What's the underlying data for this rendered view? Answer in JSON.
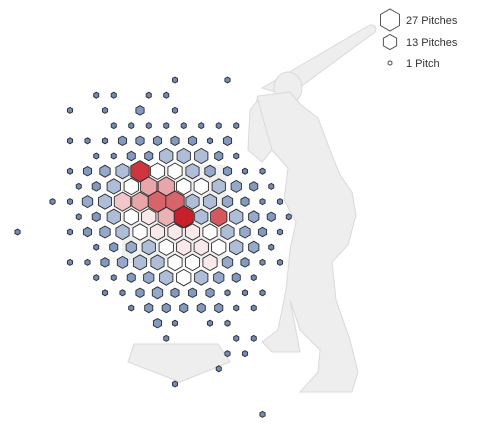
{
  "chart_data": {
    "type": "heatmap",
    "title": "",
    "xlabel": "",
    "ylabel": "",
    "legend": {
      "placement": "top-right",
      "entries": [
        {
          "label": "27 Pitches",
          "count": 27
        },
        {
          "label": "13 Pitches",
          "count": 13
        },
        {
          "label": "1 Pitch",
          "count": 1
        }
      ]
    },
    "color_scale": {
      "low": "#4d6fa8",
      "neutral": "#ffffff",
      "high": "#c8202a",
      "stroke": "#2b2b2b"
    },
    "silhouette_color": "#eeeeee",
    "cells": [
      {
        "col": 0,
        "row": 0,
        "count": 2,
        "value": -0.8
      },
      {
        "col": 3,
        "row": 0,
        "count": 2,
        "value": -0.8
      },
      {
        "col": -5,
        "row": 1,
        "count": 2,
        "value": -0.8
      },
      {
        "col": -4,
        "row": 1,
        "count": 2,
        "value": -0.8
      },
      {
        "col": -2,
        "row": 1,
        "count": 2,
        "value": -0.8
      },
      {
        "col": -1,
        "row": 1,
        "count": 2,
        "value": -0.8
      },
      {
        "col": -6,
        "row": 2,
        "count": 2,
        "value": -0.8
      },
      {
        "col": -4,
        "row": 2,
        "count": 2,
        "value": -0.8
      },
      {
        "col": -2,
        "row": 2,
        "count": 5,
        "value": -0.7
      },
      {
        "col": 0,
        "row": 2,
        "count": 2,
        "value": -0.8
      },
      {
        "col": -4,
        "row": 3,
        "count": 2,
        "value": -0.8
      },
      {
        "col": -3,
        "row": 3,
        "count": 2,
        "value": -0.8
      },
      {
        "col": -2,
        "row": 3,
        "count": 2,
        "value": -0.8
      },
      {
        "col": -1,
        "row": 3,
        "count": 2,
        "value": -0.8
      },
      {
        "col": 0,
        "row": 3,
        "count": 2,
        "value": -0.8
      },
      {
        "col": 1,
        "row": 3,
        "count": 2,
        "value": -0.8
      },
      {
        "col": 2,
        "row": 3,
        "count": 2,
        "value": -0.8
      },
      {
        "col": 3,
        "row": 3,
        "count": 2,
        "value": -0.8
      },
      {
        "col": -6,
        "row": 4,
        "count": 2,
        "value": -0.8
      },
      {
        "col": -5,
        "row": 4,
        "count": 2,
        "value": -0.8
      },
      {
        "col": -4,
        "row": 4,
        "count": 2,
        "value": -0.8
      },
      {
        "col": -3,
        "row": 4,
        "count": 5,
        "value": -0.7
      },
      {
        "col": -2,
        "row": 4,
        "count": 5,
        "value": -0.7
      },
      {
        "col": -1,
        "row": 4,
        "count": 5,
        "value": -0.7
      },
      {
        "col": 0,
        "row": 4,
        "count": 5,
        "value": -0.7
      },
      {
        "col": 1,
        "row": 4,
        "count": 5,
        "value": -0.7
      },
      {
        "col": 2,
        "row": 4,
        "count": 2,
        "value": -0.8
      },
      {
        "col": 3,
        "row": 4,
        "count": 5,
        "value": -0.7
      },
      {
        "col": -5,
        "row": 5,
        "count": 2,
        "value": -0.8
      },
      {
        "col": -4,
        "row": 5,
        "count": 2,
        "value": -0.8
      },
      {
        "col": -3,
        "row": 5,
        "count": 5,
        "value": -0.7
      },
      {
        "col": -2,
        "row": 5,
        "count": 5,
        "value": -0.7
      },
      {
        "col": -1,
        "row": 5,
        "count": 13,
        "value": -0.45
      },
      {
        "col": 0,
        "row": 5,
        "count": 13,
        "value": -0.45
      },
      {
        "col": 1,
        "row": 5,
        "count": 13,
        "value": -0.45
      },
      {
        "col": 2,
        "row": 5,
        "count": 5,
        "value": -0.7
      },
      {
        "col": 3,
        "row": 5,
        "count": 2,
        "value": -0.8
      },
      {
        "col": -6,
        "row": 6,
        "count": 2,
        "value": -0.8
      },
      {
        "col": -5,
        "row": 6,
        "count": 5,
        "value": -0.7
      },
      {
        "col": -4,
        "row": 6,
        "count": 8,
        "value": -0.6
      },
      {
        "col": -3,
        "row": 6,
        "count": 13,
        "value": -0.45
      },
      {
        "col": -2,
        "row": 6,
        "count": 25,
        "value": 0.9
      },
      {
        "col": -1,
        "row": 6,
        "count": 15,
        "value": 0.0
      },
      {
        "col": 0,
        "row": 6,
        "count": 15,
        "value": 0.0
      },
      {
        "col": 1,
        "row": 6,
        "count": 13,
        "value": -0.45
      },
      {
        "col": 2,
        "row": 6,
        "count": 8,
        "value": -0.6
      },
      {
        "col": 3,
        "row": 6,
        "count": 5,
        "value": -0.7
      },
      {
        "col": 4,
        "row": 6,
        "count": 2,
        "value": -0.8
      },
      {
        "col": 5,
        "row": 6,
        "count": 2,
        "value": -0.8
      },
      {
        "col": -6,
        "row": 7,
        "count": 2,
        "value": -0.8
      },
      {
        "col": -5,
        "row": 7,
        "count": 5,
        "value": -0.7
      },
      {
        "col": -4,
        "row": 7,
        "count": 13,
        "value": -0.45
      },
      {
        "col": -3,
        "row": 7,
        "count": 15,
        "value": 0.0
      },
      {
        "col": -2,
        "row": 7,
        "count": 20,
        "value": 0.4
      },
      {
        "col": -1,
        "row": 7,
        "count": 20,
        "value": 0.4
      },
      {
        "col": 0,
        "row": 7,
        "count": 15,
        "value": 0.0
      },
      {
        "col": 1,
        "row": 7,
        "count": 15,
        "value": 0.0
      },
      {
        "col": 2,
        "row": 7,
        "count": 13,
        "value": -0.45
      },
      {
        "col": 3,
        "row": 7,
        "count": 8,
        "value": -0.6
      },
      {
        "col": 4,
        "row": 7,
        "count": 5,
        "value": -0.7
      },
      {
        "col": 5,
        "row": 7,
        "count": 2,
        "value": -0.8
      },
      {
        "col": -7,
        "row": 8,
        "count": 2,
        "value": -0.8
      },
      {
        "col": -6,
        "row": 8,
        "count": 2,
        "value": -0.8
      },
      {
        "col": -5,
        "row": 8,
        "count": 8,
        "value": -0.6
      },
      {
        "col": -4,
        "row": 8,
        "count": 13,
        "value": -0.45
      },
      {
        "col": -3,
        "row": 8,
        "count": 20,
        "value": 0.25
      },
      {
        "col": -2,
        "row": 8,
        "count": 20,
        "value": 0.4
      },
      {
        "col": -1,
        "row": 8,
        "count": 25,
        "value": 0.7
      },
      {
        "col": 0,
        "row": 8,
        "count": 25,
        "value": 0.7
      },
      {
        "col": 1,
        "row": 8,
        "count": 13,
        "value": -0.45
      },
      {
        "col": 2,
        "row": 8,
        "count": 13,
        "value": -0.45
      },
      {
        "col": 3,
        "row": 8,
        "count": 8,
        "value": -0.6
      },
      {
        "col": 4,
        "row": 8,
        "count": 5,
        "value": -0.7
      },
      {
        "col": 5,
        "row": 8,
        "count": 2,
        "value": -0.8
      },
      {
        "col": 6,
        "row": 8,
        "count": 2,
        "value": -0.8
      },
      {
        "col": -6,
        "row": 9,
        "count": 2,
        "value": -0.8
      },
      {
        "col": -5,
        "row": 9,
        "count": 5,
        "value": -0.7
      },
      {
        "col": -4,
        "row": 9,
        "count": 13,
        "value": -0.45
      },
      {
        "col": -3,
        "row": 9,
        "count": 15,
        "value": 0.0
      },
      {
        "col": -2,
        "row": 9,
        "count": 15,
        "value": 0.1
      },
      {
        "col": -1,
        "row": 9,
        "count": 20,
        "value": 0.35
      },
      {
        "col": 0,
        "row": 9,
        "count": 27,
        "value": 1.0
      },
      {
        "col": 1,
        "row": 9,
        "count": 13,
        "value": -0.45
      },
      {
        "col": 2,
        "row": 9,
        "count": 20,
        "value": 0.75
      },
      {
        "col": 3,
        "row": 9,
        "count": 13,
        "value": -0.45
      },
      {
        "col": 4,
        "row": 9,
        "count": 8,
        "value": -0.6
      },
      {
        "col": 5,
        "row": 9,
        "count": 5,
        "value": -0.7
      },
      {
        "col": 6,
        "row": 9,
        "count": 2,
        "value": -0.8
      },
      {
        "col": -9,
        "row": 10,
        "count": 2,
        "value": -0.8
      },
      {
        "col": -6,
        "row": 10,
        "count": 2,
        "value": -0.8
      },
      {
        "col": -5,
        "row": 10,
        "count": 5,
        "value": -0.7
      },
      {
        "col": -4,
        "row": 10,
        "count": 8,
        "value": -0.6
      },
      {
        "col": -3,
        "row": 10,
        "count": 13,
        "value": -0.45
      },
      {
        "col": -2,
        "row": 10,
        "count": 15,
        "value": 0.0
      },
      {
        "col": -1,
        "row": 10,
        "count": 15,
        "value": 0.1
      },
      {
        "col": 0,
        "row": 10,
        "count": 15,
        "value": 0.1
      },
      {
        "col": 1,
        "row": 10,
        "count": 15,
        "value": 0.1
      },
      {
        "col": 2,
        "row": 10,
        "count": 15,
        "value": 0.0
      },
      {
        "col": 3,
        "row": 10,
        "count": 13,
        "value": -0.45
      },
      {
        "col": 4,
        "row": 10,
        "count": 8,
        "value": -0.6
      },
      {
        "col": 5,
        "row": 10,
        "count": 5,
        "value": -0.7
      },
      {
        "col": 6,
        "row": 10,
        "count": 2,
        "value": -0.8
      },
      {
        "col": -5,
        "row": 11,
        "count": 2,
        "value": -0.8
      },
      {
        "col": -4,
        "row": 11,
        "count": 5,
        "value": -0.7
      },
      {
        "col": -3,
        "row": 11,
        "count": 8,
        "value": -0.6
      },
      {
        "col": -2,
        "row": 11,
        "count": 13,
        "value": -0.45
      },
      {
        "col": -1,
        "row": 11,
        "count": 15,
        "value": 0.0
      },
      {
        "col": 0,
        "row": 11,
        "count": 15,
        "value": 0.1
      },
      {
        "col": 1,
        "row": 11,
        "count": 15,
        "value": 0.1
      },
      {
        "col": 2,
        "row": 11,
        "count": 15,
        "value": 0.0
      },
      {
        "col": 3,
        "row": 11,
        "count": 13,
        "value": -0.45
      },
      {
        "col": 4,
        "row": 11,
        "count": 8,
        "value": -0.6
      },
      {
        "col": 5,
        "row": 11,
        "count": 2,
        "value": -0.8
      },
      {
        "col": -6,
        "row": 12,
        "count": 2,
        "value": -0.8
      },
      {
        "col": -5,
        "row": 12,
        "count": 2,
        "value": -0.8
      },
      {
        "col": -4,
        "row": 12,
        "count": 5,
        "value": -0.7
      },
      {
        "col": -3,
        "row": 12,
        "count": 8,
        "value": -0.6
      },
      {
        "col": -2,
        "row": 12,
        "count": 13,
        "value": -0.45
      },
      {
        "col": -1,
        "row": 12,
        "count": 13,
        "value": -0.45
      },
      {
        "col": 0,
        "row": 12,
        "count": 15,
        "value": 0.0
      },
      {
        "col": 1,
        "row": 12,
        "count": 15,
        "value": 0.0
      },
      {
        "col": 2,
        "row": 12,
        "count": 15,
        "value": 0.1
      },
      {
        "col": 3,
        "row": 12,
        "count": 8,
        "value": -0.6
      },
      {
        "col": 4,
        "row": 12,
        "count": 5,
        "value": -0.7
      },
      {
        "col": 5,
        "row": 12,
        "count": 2,
        "value": -0.8
      },
      {
        "col": 6,
        "row": 12,
        "count": 2,
        "value": -0.8
      },
      {
        "col": -5,
        "row": 13,
        "count": 2,
        "value": -0.8
      },
      {
        "col": -4,
        "row": 13,
        "count": 2,
        "value": -0.8
      },
      {
        "col": -3,
        "row": 13,
        "count": 5,
        "value": -0.7
      },
      {
        "col": -2,
        "row": 13,
        "count": 8,
        "value": -0.6
      },
      {
        "col": -1,
        "row": 13,
        "count": 13,
        "value": -0.45
      },
      {
        "col": 0,
        "row": 13,
        "count": 15,
        "value": 0.0
      },
      {
        "col": 1,
        "row": 13,
        "count": 13,
        "value": -0.45
      },
      {
        "col": 2,
        "row": 13,
        "count": 8,
        "value": -0.6
      },
      {
        "col": 3,
        "row": 13,
        "count": 5,
        "value": -0.7
      },
      {
        "col": 4,
        "row": 13,
        "count": 2,
        "value": -0.8
      },
      {
        "col": -4,
        "row": 14,
        "count": 2,
        "value": -0.8
      },
      {
        "col": -3,
        "row": 14,
        "count": 2,
        "value": -0.8
      },
      {
        "col": -2,
        "row": 14,
        "count": 5,
        "value": -0.7
      },
      {
        "col": -1,
        "row": 14,
        "count": 8,
        "value": -0.6
      },
      {
        "col": 0,
        "row": 14,
        "count": 5,
        "value": -0.7
      },
      {
        "col": 1,
        "row": 14,
        "count": 5,
        "value": -0.7
      },
      {
        "col": 2,
        "row": 14,
        "count": 5,
        "value": -0.7
      },
      {
        "col": 3,
        "row": 14,
        "count": 2,
        "value": -0.8
      },
      {
        "col": 4,
        "row": 14,
        "count": 2,
        "value": -0.8
      },
      {
        "col": 5,
        "row": 14,
        "count": 2,
        "value": -0.8
      },
      {
        "col": -3,
        "row": 15,
        "count": 2,
        "value": -0.8
      },
      {
        "col": -2,
        "row": 15,
        "count": 5,
        "value": -0.7
      },
      {
        "col": -1,
        "row": 15,
        "count": 5,
        "value": -0.7
      },
      {
        "col": 0,
        "row": 15,
        "count": 5,
        "value": -0.7
      },
      {
        "col": 1,
        "row": 15,
        "count": 5,
        "value": -0.7
      },
      {
        "col": 2,
        "row": 15,
        "count": 5,
        "value": -0.7
      },
      {
        "col": 3,
        "row": 15,
        "count": 2,
        "value": -0.8
      },
      {
        "col": 4,
        "row": 15,
        "count": 2,
        "value": -0.8
      },
      {
        "col": -1,
        "row": 16,
        "count": 5,
        "value": -0.7
      },
      {
        "col": 0,
        "row": 16,
        "count": 2,
        "value": -0.8
      },
      {
        "col": 2,
        "row": 16,
        "count": 2,
        "value": -0.8
      },
      {
        "col": 3,
        "row": 16,
        "count": 2,
        "value": -0.8
      },
      {
        "col": -1,
        "row": 17,
        "count": 2,
        "value": -0.8
      },
      {
        "col": 3,
        "row": 17,
        "count": 2,
        "value": -0.8
      },
      {
        "col": 4,
        "row": 17,
        "count": 2,
        "value": -0.8
      },
      {
        "col": 3,
        "row": 18,
        "count": 2,
        "value": -0.8
      },
      {
        "col": 4,
        "row": 18,
        "count": 2,
        "value": -0.8
      },
      {
        "col": 2,
        "row": 19,
        "count": 2,
        "value": -0.8
      },
      {
        "col": 0,
        "row": 20,
        "count": 2,
        "value": -0.8
      },
      {
        "col": 5,
        "row": 22,
        "count": 2,
        "value": -0.8
      }
    ]
  }
}
